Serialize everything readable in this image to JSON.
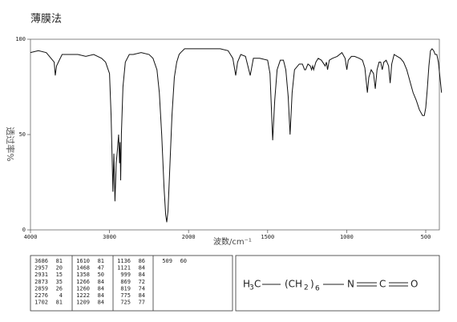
{
  "chart_data": {
    "type": "line",
    "title": "薄膜法",
    "ylabel": "透过率%",
    "xlabel": "波数/cm⁻¹",
    "xlim": [
      4000,
      400
    ],
    "ylim": [
      0,
      100
    ],
    "xticks": [
      4000,
      3000,
      2000,
      1500,
      1000,
      500
    ],
    "yticks": [
      0,
      50,
      100
    ],
    "color": "#111111",
    "x": [
      4000,
      3900,
      3800,
      3700,
      3686,
      3670,
      3600,
      3500,
      3400,
      3300,
      3200,
      3100,
      3050,
      3000,
      2980,
      2957,
      2945,
      2931,
      2915,
      2900,
      2885,
      2873,
      2866,
      2859,
      2850,
      2830,
      2800,
      2750,
      2700,
      2600,
      2500,
      2450,
      2400,
      2370,
      2340,
      2310,
      2290,
      2276,
      2260,
      2240,
      2210,
      2180,
      2150,
      2120,
      2100,
      2050,
      2000,
      1900,
      1800,
      1750,
      1720,
      1702,
      1690,
      1670,
      1640,
      1610,
      1590,
      1550,
      1500,
      1485,
      1468,
      1455,
      1440,
      1420,
      1400,
      1385,
      1370,
      1358,
      1345,
      1330,
      1300,
      1280,
      1266,
      1260,
      1245,
      1230,
      1222,
      1215,
      1209,
      1195,
      1180,
      1160,
      1136,
      1128,
      1121,
      1110,
      1090,
      1060,
      1030,
      1010,
      999,
      990,
      970,
      950,
      920,
      900,
      885,
      869,
      860,
      845,
      830,
      819,
      808,
      795,
      785,
      775,
      765,
      750,
      735,
      725,
      715,
      700,
      680,
      660,
      640,
      620,
      600,
      580,
      560,
      540,
      520,
      509,
      500,
      490,
      480,
      470,
      460,
      450,
      440,
      430,
      420,
      410,
      400
    ],
    "values": [
      93,
      94,
      93,
      88,
      81,
      86,
      92,
      92,
      92,
      91,
      92,
      90,
      88,
      82,
      60,
      20,
      40,
      15,
      35,
      42,
      50,
      35,
      46,
      26,
      50,
      75,
      88,
      92,
      92,
      93,
      92,
      90,
      84,
      72,
      50,
      22,
      8,
      4,
      10,
      30,
      60,
      80,
      88,
      92,
      93,
      95,
      95,
      95,
      95,
      94,
      90,
      81,
      88,
      92,
      91,
      81,
      90,
      90,
      89,
      82,
      47,
      68,
      84,
      89,
      89,
      84,
      70,
      50,
      72,
      84,
      87,
      87,
      84,
      84,
      87,
      86,
      84,
      86,
      84,
      88,
      90,
      89,
      86,
      88,
      84,
      89,
      90,
      91,
      93,
      90,
      84,
      89,
      91,
      91,
      90,
      89,
      85,
      72,
      80,
      84,
      82,
      74,
      84,
      88,
      88,
      84,
      88,
      89,
      86,
      77,
      87,
      92,
      91,
      90,
      88,
      84,
      78,
      72,
      68,
      63,
      60,
      60,
      64,
      74,
      86,
      94,
      95,
      94,
      92,
      92,
      88,
      80,
      72
    ]
  },
  "peak_table": [
    [
      [
        3686,
        81
      ],
      [
        2957,
        20
      ],
      [
        2931,
        15
      ],
      [
        2873,
        35
      ],
      [
        2859,
        26
      ],
      [
        2276,
        4
      ],
      [
        1702,
        81
      ]
    ],
    [
      [
        1610,
        81
      ],
      [
        1468,
        47
      ],
      [
        1358,
        50
      ],
      [
        1266,
        84
      ],
      [
        1260,
        84
      ],
      [
        1222,
        84
      ],
      [
        1209,
        84
      ]
    ],
    [
      [
        1136,
        86
      ],
      [
        1121,
        84
      ],
      [
        999,
        84
      ],
      [
        869,
        72
      ],
      [
        819,
        74
      ],
      [
        775,
        84
      ],
      [
        725,
        77
      ]
    ],
    [
      [
        509,
        60
      ]
    ]
  ],
  "structure": {
    "h": "H",
    "h_sub": "3",
    "c1": "C",
    "open": "(CH",
    "ch_sub": "2",
    "close": ")",
    "n_sub": "6",
    "n": "N",
    "c2": "C",
    "o": "O"
  }
}
